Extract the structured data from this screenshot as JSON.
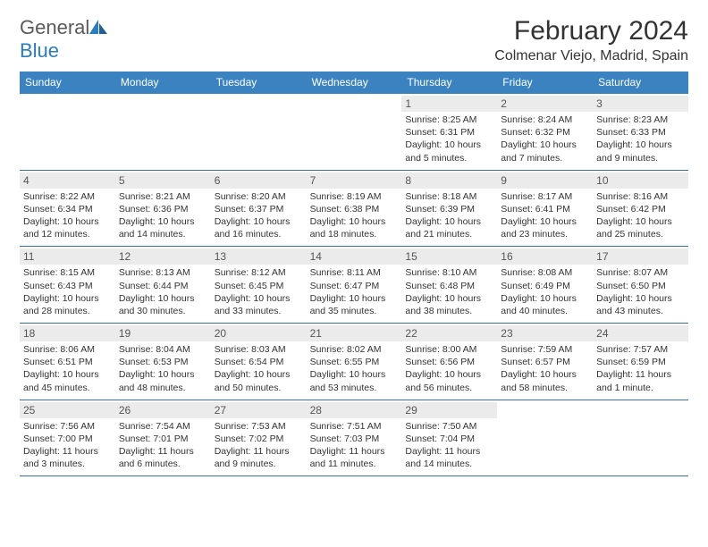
{
  "logo": {
    "word1": "General",
    "word2": "Blue"
  },
  "title": "February 2024",
  "location": "Colmenar Viejo, Madrid, Spain",
  "colors": {
    "header_bar": "#3b83c0",
    "week_border": "#3b6fa0",
    "daynum_bg": "#ebebeb",
    "logo_gray": "#5a5a5a",
    "logo_blue": "#2b7bbf"
  },
  "weekdays": [
    "Sunday",
    "Monday",
    "Tuesday",
    "Wednesday",
    "Thursday",
    "Friday",
    "Saturday"
  ],
  "weeks": [
    [
      {
        "n": "",
        "sr": "",
        "ss": "",
        "dl": ""
      },
      {
        "n": "",
        "sr": "",
        "ss": "",
        "dl": ""
      },
      {
        "n": "",
        "sr": "",
        "ss": "",
        "dl": ""
      },
      {
        "n": "",
        "sr": "",
        "ss": "",
        "dl": ""
      },
      {
        "n": "1",
        "sr": "Sunrise: 8:25 AM",
        "ss": "Sunset: 6:31 PM",
        "dl": "Daylight: 10 hours and 5 minutes."
      },
      {
        "n": "2",
        "sr": "Sunrise: 8:24 AM",
        "ss": "Sunset: 6:32 PM",
        "dl": "Daylight: 10 hours and 7 minutes."
      },
      {
        "n": "3",
        "sr": "Sunrise: 8:23 AM",
        "ss": "Sunset: 6:33 PM",
        "dl": "Daylight: 10 hours and 9 minutes."
      }
    ],
    [
      {
        "n": "4",
        "sr": "Sunrise: 8:22 AM",
        "ss": "Sunset: 6:34 PM",
        "dl": "Daylight: 10 hours and 12 minutes."
      },
      {
        "n": "5",
        "sr": "Sunrise: 8:21 AM",
        "ss": "Sunset: 6:36 PM",
        "dl": "Daylight: 10 hours and 14 minutes."
      },
      {
        "n": "6",
        "sr": "Sunrise: 8:20 AM",
        "ss": "Sunset: 6:37 PM",
        "dl": "Daylight: 10 hours and 16 minutes."
      },
      {
        "n": "7",
        "sr": "Sunrise: 8:19 AM",
        "ss": "Sunset: 6:38 PM",
        "dl": "Daylight: 10 hours and 18 minutes."
      },
      {
        "n": "8",
        "sr": "Sunrise: 8:18 AM",
        "ss": "Sunset: 6:39 PM",
        "dl": "Daylight: 10 hours and 21 minutes."
      },
      {
        "n": "9",
        "sr": "Sunrise: 8:17 AM",
        "ss": "Sunset: 6:41 PM",
        "dl": "Daylight: 10 hours and 23 minutes."
      },
      {
        "n": "10",
        "sr": "Sunrise: 8:16 AM",
        "ss": "Sunset: 6:42 PM",
        "dl": "Daylight: 10 hours and 25 minutes."
      }
    ],
    [
      {
        "n": "11",
        "sr": "Sunrise: 8:15 AM",
        "ss": "Sunset: 6:43 PM",
        "dl": "Daylight: 10 hours and 28 minutes."
      },
      {
        "n": "12",
        "sr": "Sunrise: 8:13 AM",
        "ss": "Sunset: 6:44 PM",
        "dl": "Daylight: 10 hours and 30 minutes."
      },
      {
        "n": "13",
        "sr": "Sunrise: 8:12 AM",
        "ss": "Sunset: 6:45 PM",
        "dl": "Daylight: 10 hours and 33 minutes."
      },
      {
        "n": "14",
        "sr": "Sunrise: 8:11 AM",
        "ss": "Sunset: 6:47 PM",
        "dl": "Daylight: 10 hours and 35 minutes."
      },
      {
        "n": "15",
        "sr": "Sunrise: 8:10 AM",
        "ss": "Sunset: 6:48 PM",
        "dl": "Daylight: 10 hours and 38 minutes."
      },
      {
        "n": "16",
        "sr": "Sunrise: 8:08 AM",
        "ss": "Sunset: 6:49 PM",
        "dl": "Daylight: 10 hours and 40 minutes."
      },
      {
        "n": "17",
        "sr": "Sunrise: 8:07 AM",
        "ss": "Sunset: 6:50 PM",
        "dl": "Daylight: 10 hours and 43 minutes."
      }
    ],
    [
      {
        "n": "18",
        "sr": "Sunrise: 8:06 AM",
        "ss": "Sunset: 6:51 PM",
        "dl": "Daylight: 10 hours and 45 minutes."
      },
      {
        "n": "19",
        "sr": "Sunrise: 8:04 AM",
        "ss": "Sunset: 6:53 PM",
        "dl": "Daylight: 10 hours and 48 minutes."
      },
      {
        "n": "20",
        "sr": "Sunrise: 8:03 AM",
        "ss": "Sunset: 6:54 PM",
        "dl": "Daylight: 10 hours and 50 minutes."
      },
      {
        "n": "21",
        "sr": "Sunrise: 8:02 AM",
        "ss": "Sunset: 6:55 PM",
        "dl": "Daylight: 10 hours and 53 minutes."
      },
      {
        "n": "22",
        "sr": "Sunrise: 8:00 AM",
        "ss": "Sunset: 6:56 PM",
        "dl": "Daylight: 10 hours and 56 minutes."
      },
      {
        "n": "23",
        "sr": "Sunrise: 7:59 AM",
        "ss": "Sunset: 6:57 PM",
        "dl": "Daylight: 10 hours and 58 minutes."
      },
      {
        "n": "24",
        "sr": "Sunrise: 7:57 AM",
        "ss": "Sunset: 6:59 PM",
        "dl": "Daylight: 11 hours and 1 minute."
      }
    ],
    [
      {
        "n": "25",
        "sr": "Sunrise: 7:56 AM",
        "ss": "Sunset: 7:00 PM",
        "dl": "Daylight: 11 hours and 3 minutes."
      },
      {
        "n": "26",
        "sr": "Sunrise: 7:54 AM",
        "ss": "Sunset: 7:01 PM",
        "dl": "Daylight: 11 hours and 6 minutes."
      },
      {
        "n": "27",
        "sr": "Sunrise: 7:53 AM",
        "ss": "Sunset: 7:02 PM",
        "dl": "Daylight: 11 hours and 9 minutes."
      },
      {
        "n": "28",
        "sr": "Sunrise: 7:51 AM",
        "ss": "Sunset: 7:03 PM",
        "dl": "Daylight: 11 hours and 11 minutes."
      },
      {
        "n": "29",
        "sr": "Sunrise: 7:50 AM",
        "ss": "Sunset: 7:04 PM",
        "dl": "Daylight: 11 hours and 14 minutes."
      },
      {
        "n": "",
        "sr": "",
        "ss": "",
        "dl": ""
      },
      {
        "n": "",
        "sr": "",
        "ss": "",
        "dl": ""
      }
    ]
  ]
}
